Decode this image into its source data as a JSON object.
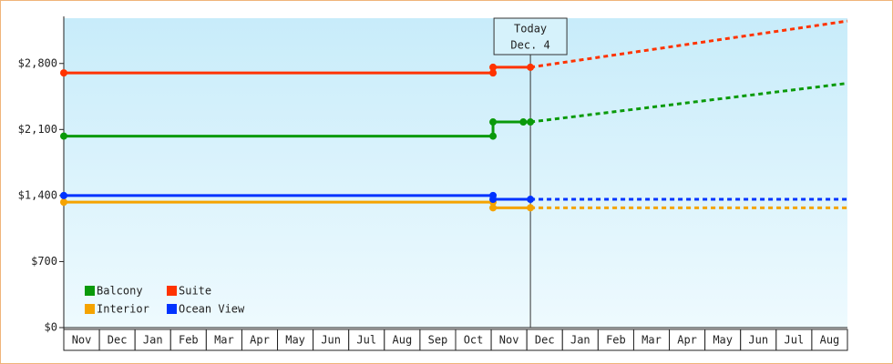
{
  "chart_data": {
    "type": "line",
    "categories": [
      "Nov",
      "Dec",
      "Jan",
      "Feb",
      "Mar",
      "Apr",
      "May",
      "Jun",
      "Jul",
      "Aug",
      "Sep",
      "Oct",
      "Nov",
      "Dec",
      "Jan",
      "Feb",
      "Mar",
      "Apr",
      "May",
      "Jun",
      "Jul",
      "Aug"
    ],
    "xlim": [
      0,
      22
    ],
    "ylim": [
      0,
      3280
    ],
    "yticks": [
      {
        "value": 0,
        "label": "$0"
      },
      {
        "value": 700,
        "label": "$700"
      },
      {
        "value": 1400,
        "label": "$1,400"
      },
      {
        "value": 2100,
        "label": "$2,100"
      },
      {
        "value": 2800,
        "label": "$2,800"
      }
    ],
    "today": {
      "x": 13.1,
      "label": [
        "Today",
        "Dec. 4"
      ]
    },
    "legend": "lower left",
    "series": [
      {
        "name": "Balcony",
        "color": "#0a9a0a",
        "x": [
          0,
          12.05,
          12.05,
          12.9,
          13.1
        ],
        "values": [
          2030,
          2030,
          2180,
          2180,
          2180
        ],
        "forecast_x": [
          13.1,
          22
        ],
        "forecast_values": [
          2180,
          2590
        ]
      },
      {
        "name": "Suite",
        "color": "#ff3300",
        "x": [
          0,
          12.05,
          12.05,
          13.1
        ],
        "values": [
          2700,
          2700,
          2760,
          2760
        ],
        "forecast_x": [
          13.1,
          22
        ],
        "forecast_values": [
          2760,
          3250
        ]
      },
      {
        "name": "Interior",
        "color": "#f5a300",
        "x": [
          0,
          12.05,
          12.05,
          13.1
        ],
        "values": [
          1330,
          1330,
          1270,
          1270
        ],
        "forecast_x": [
          13.1,
          22
        ],
        "forecast_values": [
          1270,
          1270
        ]
      },
      {
        "name": "Ocean View",
        "color": "#0033ff",
        "x": [
          0,
          12.05,
          12.05,
          13.1
        ],
        "values": [
          1400,
          1400,
          1360,
          1360
        ],
        "forecast_x": [
          13.1,
          22
        ],
        "forecast_values": [
          1360,
          1360
        ]
      }
    ]
  }
}
